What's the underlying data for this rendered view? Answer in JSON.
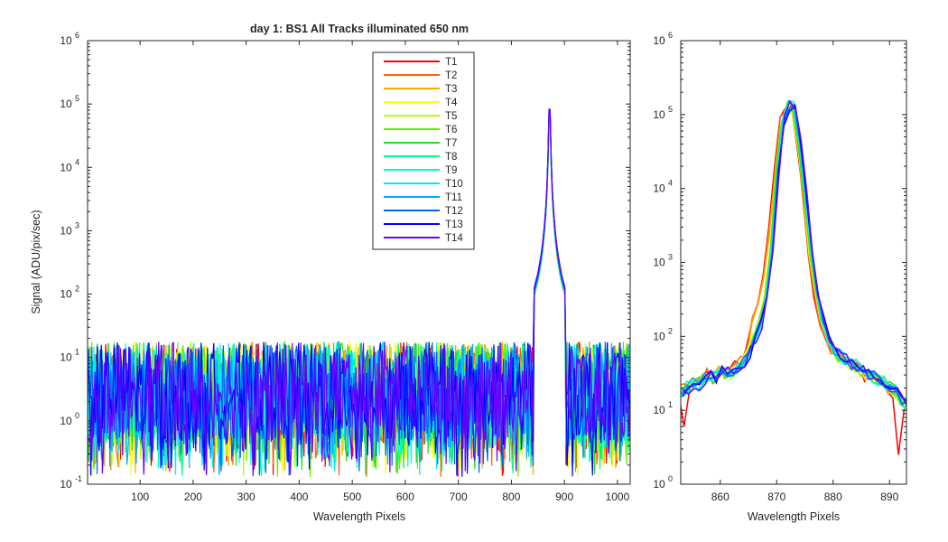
{
  "chart_data": [
    {
      "type": "line",
      "title": "day 1: BS1   All Tracks illuminated   650 nm",
      "xlabel": "Wavelength Pixels",
      "ylabel": "Signal (ADU/pix/sec)",
      "xlim": [
        1,
        1024
      ],
      "ylim": [
        0.1,
        1000000
      ],
      "yscale": "log",
      "xticks": [
        100,
        200,
        300,
        400,
        500,
        600,
        700,
        800,
        900,
        1000
      ],
      "xtick_labels": [
        "100",
        "200",
        "300",
        "400",
        "500",
        "600",
        "700",
        "800",
        "900",
        "1000"
      ],
      "ytick_exponents": [
        -1,
        0,
        1,
        2,
        3,
        4,
        5,
        6
      ],
      "ytick_base": "10",
      "grid": false,
      "legend": "top-center",
      "noise_floor": {
        "x_range": [
          1,
          850
        ],
        "typical_min": 0.13,
        "typical_max": 20
      },
      "peak": {
        "x": 872,
        "y": 150000
      }
    },
    {
      "type": "line",
      "title": "",
      "xlabel": "Wavelength Pixels",
      "ylabel": "",
      "xlim": [
        853,
        893
      ],
      "ylim": [
        1,
        1000000
      ],
      "yscale": "log",
      "xticks": [
        860,
        870,
        880,
        890
      ],
      "xtick_labels": [
        "860",
        "870",
        "880",
        "890"
      ],
      "ytick_exponents": [
        0,
        1,
        2,
        3,
        4,
        5,
        6
      ],
      "ytick_base": "10",
      "grid": false,
      "legend": "none",
      "profile": {
        "x": [
          853,
          854,
          855,
          856,
          857,
          858,
          859,
          860,
          861,
          862,
          863,
          864,
          865,
          866,
          867,
          868,
          869,
          870,
          871,
          872,
          873,
          874,
          875,
          876,
          877,
          878,
          879,
          880,
          881,
          882,
          883,
          884,
          885,
          886,
          887,
          888,
          889,
          890,
          891,
          892,
          893
        ],
        "y": [
          18,
          20,
          23,
          22,
          26,
          30,
          28,
          34,
          32,
          30,
          38,
          45,
          60,
          90,
          150,
          350,
          1500,
          15000,
          80000,
          130000,
          120000,
          40000,
          8000,
          1500,
          400,
          160,
          95,
          70,
          55,
          50,
          42,
          40,
          35,
          30,
          28,
          26,
          24,
          20,
          18,
          14,
          12
        ]
      }
    }
  ],
  "series": [
    {
      "name": "T1",
      "color": "#ff0000"
    },
    {
      "name": "T2",
      "color": "#ff6000"
    },
    {
      "name": "T3",
      "color": "#ffa800"
    },
    {
      "name": "T4",
      "color": "#ffff00"
    },
    {
      "name": "T5",
      "color": "#b4ff00"
    },
    {
      "name": "T6",
      "color": "#66f000"
    },
    {
      "name": "T7",
      "color": "#22e022"
    },
    {
      "name": "T8",
      "color": "#00ff80"
    },
    {
      "name": "T9",
      "color": "#00ffc8"
    },
    {
      "name": "T10",
      "color": "#00e8ff"
    },
    {
      "name": "T11",
      "color": "#00a8ff"
    },
    {
      "name": "T12",
      "color": "#0064ff"
    },
    {
      "name": "T13",
      "color": "#0000ff"
    },
    {
      "name": "T14",
      "color": "#6a00ff"
    }
  ]
}
